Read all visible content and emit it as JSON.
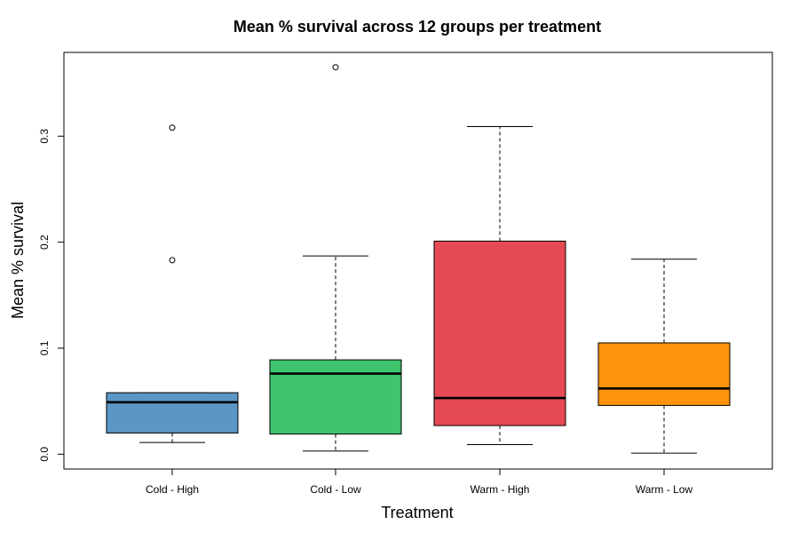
{
  "chart_data": {
    "type": "boxplot",
    "title": "Mean % survival across 12 groups per treatment",
    "xlabel": "Treatment",
    "ylabel": "Mean % survival",
    "categories": [
      "Cold - High",
      "Cold - Low",
      "Warm - High",
      "Warm - Low"
    ],
    "y_ticks": [
      0.0,
      0.1,
      0.2,
      0.3
    ],
    "y_tick_labels": [
      "0.0",
      "0.1",
      "0.2",
      "0.3"
    ],
    "ylim": [
      -0.014,
      0.379
    ],
    "grid": false,
    "legend": "none",
    "boxes": [
      {
        "category": "Cold - High",
        "color": "#5b97c6",
        "whisker_low": 0.011,
        "q1": 0.02,
        "median": 0.049,
        "q3": 0.058,
        "whisker_high": 0.058,
        "outliers": [
          0.183,
          0.308
        ]
      },
      {
        "category": "Cold - Low",
        "color": "#3ec56d",
        "whisker_low": 0.003,
        "q1": 0.019,
        "median": 0.076,
        "q3": 0.089,
        "whisker_high": 0.187,
        "outliers": [
          0.365
        ]
      },
      {
        "category": "Warm - High",
        "color": "#e64b55",
        "whisker_low": 0.009,
        "q1": 0.027,
        "median": 0.053,
        "q3": 0.201,
        "whisker_high": 0.309,
        "outliers": []
      },
      {
        "category": "Warm - Low",
        "color": "#fd930b",
        "whisker_low": 0.001,
        "q1": 0.046,
        "median": 0.062,
        "q3": 0.105,
        "whisker_high": 0.184,
        "outliers": []
      }
    ]
  }
}
